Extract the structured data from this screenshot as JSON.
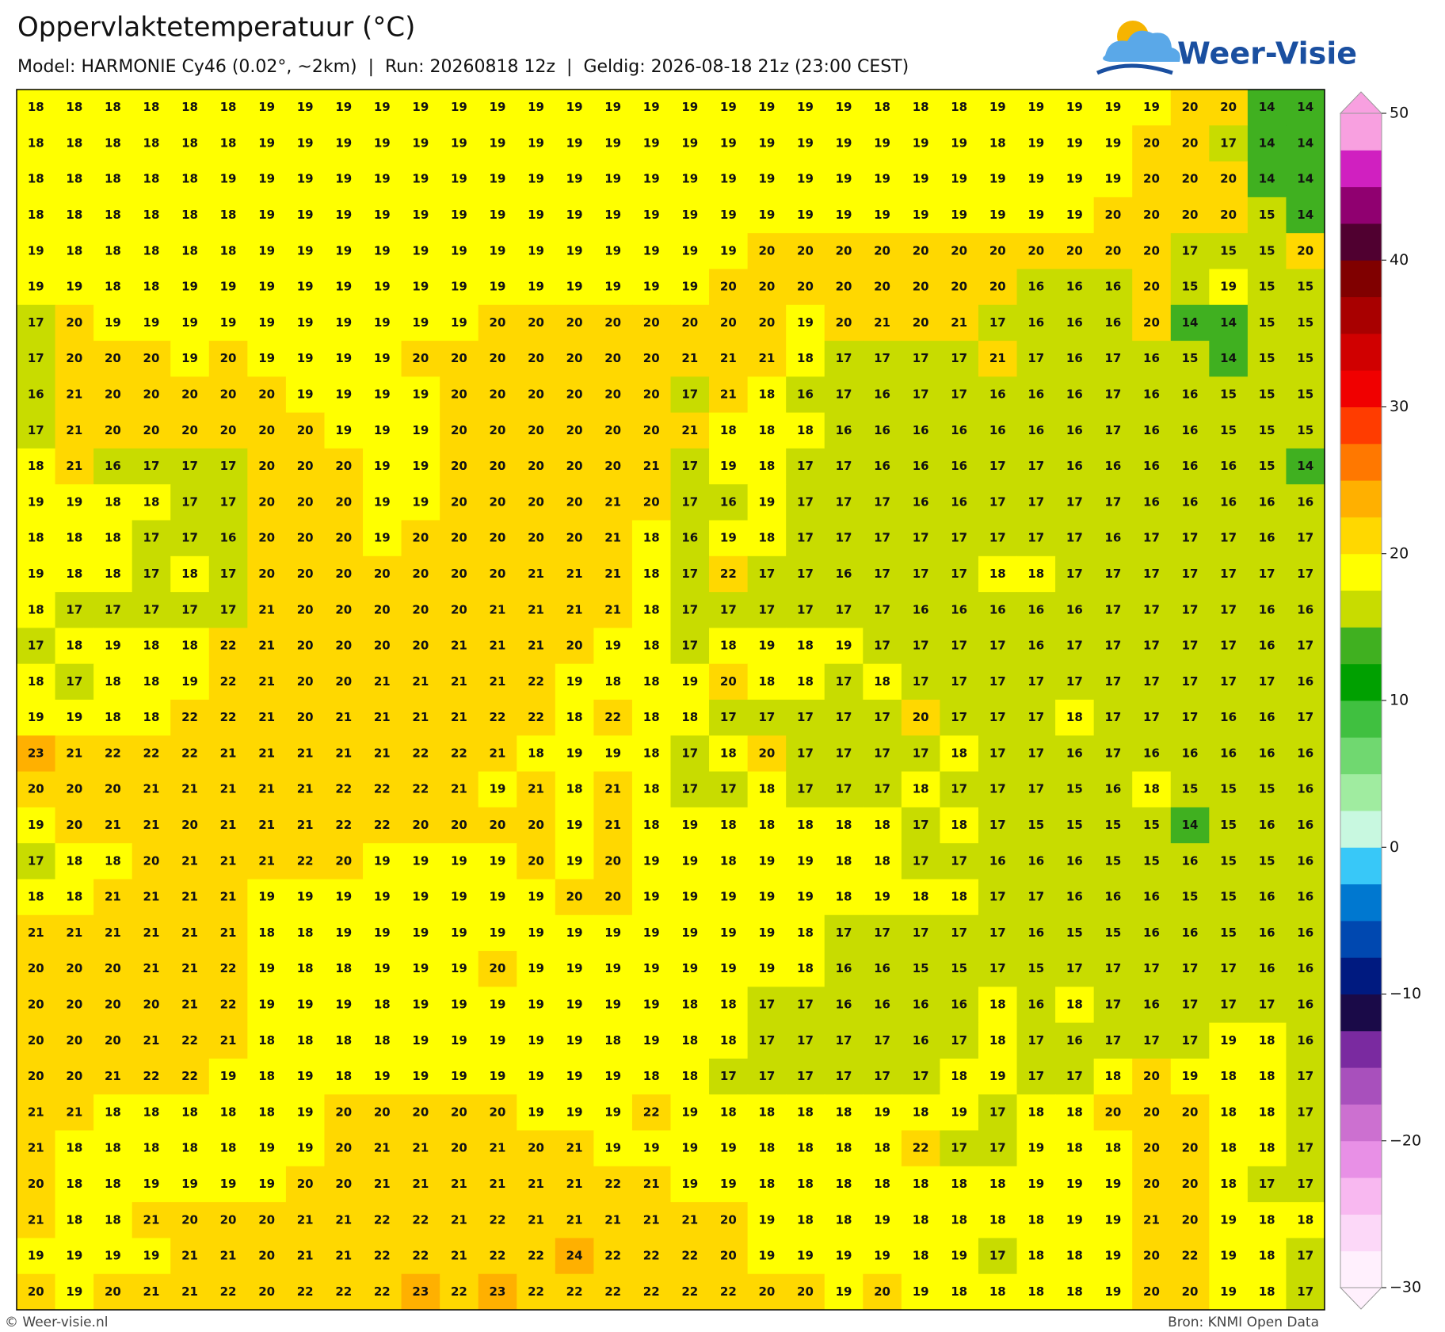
{
  "header": {
    "title": "Oppervlaktetemperatuur (°C)",
    "subtitle": "Model: HARMONIE Cy46 (0.02°, ~2km)  |  Run: 20260818 12z  |  Geldig: 2026-08-18 21z (23:00 CEST)",
    "logo": "Weer-Visie"
  },
  "footer": {
    "left": "© Weer-visie.nl",
    "right": "Bron: KNMI Open Data"
  },
  "colorbar": {
    "range": [
      -30,
      50
    ],
    "step": 2.5,
    "colors": [
      "#fff0fd",
      "#fcd8f8",
      "#f8b8f0",
      "#e890e6",
      "#cc70d0",
      "#a850bc",
      "#7a2aa0",
      "#1a0a48",
      "#001a80",
      "#0048b0",
      "#0078d0",
      "#38c8f8",
      "#c8f8e0",
      "#a0eca0",
      "#70d870",
      "#40c040",
      "#00a000",
      "#40b020",
      "#c8dc00",
      "#ffff00",
      "#ffd800",
      "#ffb000",
      "#ff7800",
      "#ff3c00",
      "#f00000",
      "#d00000",
      "#a80000",
      "#800000",
      "#500030",
      "#900070",
      "#d020c0",
      "#f8a0e0"
    ],
    "ticks": [
      {
        "value": -30,
        "label": "−30"
      },
      {
        "value": -20,
        "label": "−20"
      },
      {
        "value": -10,
        "label": "−10"
      },
      0,
      10,
      20,
      30,
      40,
      50
    ]
  },
  "map": {
    "grid": [
      [
        18,
        18,
        18,
        18,
        18,
        18,
        19,
        19,
        19,
        19,
        19,
        19,
        19,
        19,
        19,
        19,
        19,
        19,
        19,
        19,
        19,
        19,
        18,
        18,
        18,
        19,
        19,
        19,
        19,
        19,
        20,
        20,
        14,
        14
      ],
      [
        18,
        18,
        18,
        18,
        18,
        18,
        19,
        19,
        19,
        19,
        19,
        19,
        19,
        19,
        19,
        19,
        19,
        19,
        19,
        19,
        19,
        19,
        19,
        19,
        19,
        18,
        19,
        19,
        19,
        20,
        20,
        17,
        14,
        14
      ],
      [
        18,
        18,
        18,
        18,
        18,
        19,
        19,
        19,
        19,
        19,
        19,
        19,
        19,
        19,
        19,
        19,
        19,
        19,
        19,
        19,
        19,
        19,
        19,
        19,
        19,
        19,
        19,
        19,
        19,
        20,
        20,
        20,
        14,
        14
      ],
      [
        18,
        18,
        18,
        18,
        18,
        18,
        19,
        19,
        19,
        19,
        19,
        19,
        19,
        19,
        19,
        19,
        19,
        19,
        19,
        19,
        19,
        19,
        19,
        19,
        19,
        19,
        19,
        19,
        20,
        20,
        20,
        20,
        15,
        14
      ],
      [
        19,
        18,
        18,
        18,
        18,
        18,
        19,
        19,
        19,
        19,
        19,
        19,
        19,
        19,
        19,
        19,
        19,
        19,
        19,
        20,
        20,
        20,
        20,
        20,
        20,
        20,
        20,
        20,
        20,
        20,
        17,
        15,
        15,
        20
      ],
      [
        19,
        19,
        18,
        18,
        19,
        19,
        19,
        19,
        19,
        19,
        19,
        19,
        19,
        19,
        19,
        19,
        19,
        19,
        20,
        20,
        20,
        20,
        20,
        20,
        20,
        20,
        16,
        16,
        16,
        20,
        15,
        19,
        15,
        15
      ],
      [
        17,
        20,
        19,
        19,
        19,
        19,
        19,
        19,
        19,
        19,
        19,
        19,
        20,
        20,
        20,
        20,
        20,
        20,
        20,
        20,
        19,
        20,
        21,
        20,
        21,
        17,
        16,
        16,
        16,
        20,
        14,
        14,
        15,
        15
      ],
      [
        17,
        20,
        20,
        20,
        19,
        20,
        19,
        19,
        19,
        19,
        20,
        20,
        20,
        20,
        20,
        20,
        20,
        21,
        21,
        21,
        18,
        17,
        17,
        17,
        17,
        21,
        17,
        16,
        17,
        16,
        15,
        14,
        15,
        15
      ],
      [
        16,
        21,
        20,
        20,
        20,
        20,
        20,
        19,
        19,
        19,
        19,
        20,
        20,
        20,
        20,
        20,
        20,
        17,
        21,
        18,
        16,
        17,
        16,
        17,
        17,
        16,
        16,
        16,
        17,
        16,
        16,
        15,
        15,
        15
      ],
      [
        17,
        21,
        20,
        20,
        20,
        20,
        20,
        20,
        19,
        19,
        19,
        20,
        20,
        20,
        20,
        20,
        20,
        21,
        18,
        18,
        18,
        16,
        16,
        16,
        16,
        16,
        16,
        16,
        17,
        16,
        16,
        15,
        15,
        15
      ],
      [
        18,
        21,
        16,
        17,
        17,
        17,
        20,
        20,
        20,
        19,
        19,
        20,
        20,
        20,
        20,
        20,
        21,
        17,
        19,
        18,
        17,
        17,
        16,
        16,
        16,
        17,
        17,
        16,
        16,
        16,
        16,
        16,
        15,
        14
      ],
      [
        19,
        19,
        18,
        18,
        17,
        17,
        20,
        20,
        20,
        19,
        19,
        20,
        20,
        20,
        20,
        21,
        20,
        17,
        16,
        19,
        17,
        17,
        17,
        16,
        16,
        17,
        17,
        17,
        17,
        16,
        16,
        16,
        16,
        16
      ],
      [
        18,
        18,
        18,
        17,
        17,
        16,
        20,
        20,
        20,
        19,
        20,
        20,
        20,
        20,
        20,
        21,
        18,
        16,
        19,
        18,
        17,
        17,
        17,
        17,
        17,
        17,
        17,
        17,
        16,
        17,
        17,
        17,
        16,
        17
      ],
      [
        19,
        18,
        18,
        17,
        18,
        17,
        20,
        20,
        20,
        20,
        20,
        20,
        20,
        21,
        21,
        21,
        18,
        17,
        22,
        17,
        17,
        16,
        17,
        17,
        17,
        18,
        18,
        17,
        17,
        17,
        17,
        17,
        17,
        17
      ],
      [
        18,
        17,
        17,
        17,
        17,
        17,
        21,
        20,
        20,
        20,
        20,
        20,
        21,
        21,
        21,
        21,
        18,
        17,
        17,
        17,
        17,
        17,
        17,
        16,
        16,
        16,
        16,
        16,
        17,
        17,
        17,
        17,
        16,
        16
      ],
      [
        17,
        18,
        19,
        18,
        18,
        22,
        21,
        20,
        20,
        20,
        20,
        21,
        21,
        21,
        20,
        19,
        18,
        17,
        18,
        19,
        18,
        19,
        17,
        17,
        17,
        17,
        16,
        17,
        17,
        17,
        17,
        17,
        16,
        17
      ],
      [
        18,
        17,
        18,
        18,
        19,
        22,
        21,
        20,
        20,
        21,
        21,
        21,
        21,
        22,
        19,
        18,
        18,
        19,
        20,
        18,
        18,
        17,
        18,
        17,
        17,
        17,
        17,
        17,
        17,
        17,
        17,
        17,
        17,
        16
      ],
      [
        19,
        19,
        18,
        18,
        22,
        22,
        21,
        20,
        21,
        21,
        21,
        21,
        22,
        22,
        18,
        22,
        18,
        18,
        17,
        17,
        17,
        17,
        17,
        20,
        17,
        17,
        17,
        18,
        17,
        17,
        17,
        16,
        16,
        17
      ],
      [
        23,
        21,
        22,
        22,
        22,
        21,
        21,
        21,
        21,
        21,
        22,
        22,
        21,
        18,
        19,
        19,
        18,
        17,
        18,
        20,
        17,
        17,
        17,
        17,
        18,
        17,
        17,
        16,
        17,
        16,
        16,
        16,
        16,
        16
      ],
      [
        20,
        20,
        20,
        21,
        21,
        21,
        21,
        21,
        22,
        22,
        22,
        21,
        19,
        21,
        18,
        21,
        18,
        17,
        17,
        18,
        17,
        17,
        17,
        18,
        17,
        17,
        17,
        15,
        16,
        18,
        15,
        15,
        15,
        16
      ],
      [
        19,
        20,
        21,
        21,
        20,
        21,
        21,
        21,
        22,
        22,
        20,
        20,
        20,
        20,
        19,
        21,
        18,
        19,
        18,
        18,
        18,
        18,
        18,
        17,
        18,
        17,
        15,
        15,
        15,
        15,
        14,
        15,
        16,
        16
      ],
      [
        17,
        18,
        18,
        20,
        21,
        21,
        21,
        22,
        20,
        19,
        19,
        19,
        19,
        20,
        19,
        20,
        19,
        19,
        18,
        19,
        19,
        18,
        18,
        17,
        17,
        16,
        16,
        16,
        15,
        15,
        16,
        15,
        15,
        16
      ],
      [
        18,
        18,
        21,
        21,
        21,
        21,
        19,
        19,
        19,
        19,
        19,
        19,
        19,
        19,
        20,
        20,
        19,
        19,
        19,
        19,
        19,
        18,
        19,
        18,
        18,
        17,
        17,
        16,
        16,
        16,
        15,
        15,
        16,
        16
      ],
      [
        21,
        21,
        21,
        21,
        21,
        21,
        18,
        18,
        19,
        19,
        19,
        19,
        19,
        19,
        19,
        19,
        19,
        19,
        19,
        19,
        18,
        17,
        17,
        17,
        17,
        17,
        16,
        15,
        15,
        16,
        16,
        15,
        16,
        16
      ],
      [
        20,
        20,
        20,
        21,
        21,
        22,
        19,
        18,
        18,
        19,
        19,
        19,
        20,
        19,
        19,
        19,
        19,
        19,
        19,
        19,
        18,
        16,
        16,
        15,
        15,
        17,
        15,
        17,
        17,
        17,
        17,
        17,
        16,
        16
      ],
      [
        20,
        20,
        20,
        20,
        21,
        22,
        19,
        19,
        19,
        18,
        19,
        19,
        19,
        19,
        19,
        19,
        19,
        18,
        18,
        17,
        17,
        16,
        16,
        16,
        16,
        18,
        16,
        18,
        17,
        16,
        17,
        17,
        17,
        16
      ],
      [
        20,
        20,
        20,
        21,
        22,
        21,
        18,
        18,
        18,
        18,
        19,
        19,
        19,
        19,
        19,
        18,
        19,
        18,
        18,
        17,
        17,
        17,
        17,
        16,
        17,
        18,
        17,
        16,
        17,
        17,
        17,
        19,
        18,
        16
      ],
      [
        20,
        20,
        21,
        22,
        22,
        19,
        18,
        19,
        18,
        19,
        19,
        19,
        19,
        19,
        19,
        19,
        18,
        18,
        17,
        17,
        17,
        17,
        17,
        17,
        18,
        19,
        17,
        17,
        18,
        20,
        19,
        18,
        18,
        17
      ],
      [
        21,
        21,
        18,
        18,
        18,
        18,
        18,
        19,
        20,
        20,
        20,
        20,
        20,
        19,
        19,
        19,
        22,
        19,
        18,
        18,
        18,
        18,
        19,
        18,
        19,
        17,
        18,
        18,
        20,
        20,
        20,
        18,
        18,
        17
      ],
      [
        21,
        18,
        18,
        18,
        18,
        18,
        19,
        19,
        20,
        21,
        21,
        20,
        21,
        20,
        21,
        19,
        19,
        19,
        19,
        18,
        18,
        18,
        18,
        22,
        17,
        17,
        19,
        18,
        18,
        20,
        20,
        18,
        18,
        17
      ],
      [
        20,
        18,
        18,
        19,
        19,
        19,
        19,
        20,
        20,
        21,
        21,
        21,
        21,
        21,
        21,
        22,
        21,
        19,
        19,
        18,
        18,
        18,
        18,
        18,
        18,
        18,
        19,
        19,
        19,
        20,
        20,
        18,
        17,
        17
      ],
      [
        21,
        18,
        18,
        21,
        20,
        20,
        20,
        21,
        21,
        22,
        22,
        21,
        22,
        21,
        21,
        21,
        21,
        21,
        20,
        19,
        18,
        18,
        19,
        18,
        18,
        18,
        18,
        19,
        19,
        21,
        20,
        19,
        18,
        18
      ],
      [
        19,
        19,
        19,
        19,
        21,
        21,
        20,
        21,
        21,
        22,
        22,
        21,
        22,
        22,
        24,
        22,
        22,
        22,
        20,
        19,
        19,
        19,
        19,
        18,
        19,
        17,
        18,
        18,
        19,
        20,
        22,
        19,
        18,
        17
      ],
      [
        20,
        19,
        20,
        21,
        21,
        22,
        20,
        22,
        22,
        22,
        23,
        22,
        23,
        22,
        22,
        22,
        22,
        22,
        22,
        20,
        20,
        19,
        20,
        19,
        18,
        18,
        18,
        18,
        19,
        20,
        20,
        19,
        18,
        17
      ]
    ]
  }
}
